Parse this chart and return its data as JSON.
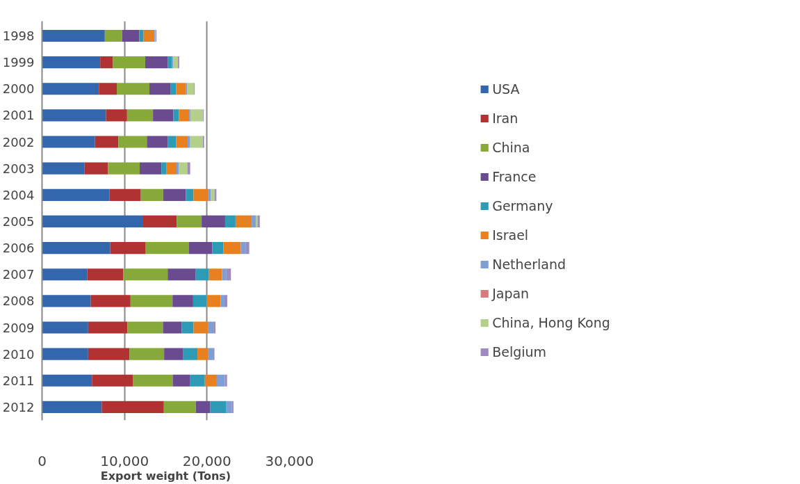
{
  "chart_data": {
    "type": "bar",
    "orientation": "horizontal",
    "stacked": true,
    "xlabel": "Export weight (Tons)",
    "categories": [
      "1998",
      "1999",
      "2000",
      "2001",
      "2002",
      "2003",
      "2004",
      "2005",
      "2006",
      "2007",
      "2008",
      "2009",
      "2010",
      "2011",
      "2012"
    ],
    "xlim": [
      0,
      30000
    ],
    "xticks": [
      {
        "value": 0,
        "label": "0"
      },
      {
        "value": 10000,
        "label": "10,000"
      },
      {
        "value": 20000,
        "label": "20,000"
      },
      {
        "value": 30000,
        "label": "30,000"
      }
    ],
    "grid": "x",
    "legend": "right",
    "series": [
      {
        "name": "USA",
        "color": "#3366ad",
        "values": [
          7610,
          7050,
          6890,
          7750,
          6420,
          5160,
          8180,
          12260,
          8270,
          5490,
          5910,
          5590,
          5590,
          6050,
          7240
        ]
      },
      {
        "name": "Iran",
        "color": "#b03232",
        "values": [
          0,
          1540,
          2170,
          2560,
          2830,
          2840,
          3800,
          4070,
          4300,
          4370,
          4820,
          4750,
          5000,
          5000,
          7530
        ]
      },
      {
        "name": "China",
        "color": "#87a93a",
        "values": [
          2110,
          3920,
          3960,
          3140,
          3460,
          3840,
          2710,
          3020,
          5210,
          5370,
          5090,
          4320,
          4210,
          4790,
          3870
        ]
      },
      {
        "name": "France",
        "color": "#6b4b8f",
        "values": [
          2080,
          2750,
          2590,
          2470,
          2550,
          2630,
          2740,
          2850,
          2850,
          3410,
          2500,
          2260,
          2270,
          2130,
          1760
        ]
      },
      {
        "name": "Germany",
        "color": "#2e9bb6",
        "values": [
          510,
          510,
          630,
          670,
          1010,
          630,
          930,
          1260,
          1350,
          1600,
          1610,
          1450,
          1770,
          1770,
          1950
        ]
      },
      {
        "name": "Israel",
        "color": "#e8801f",
        "values": [
          1310,
          0,
          1170,
          1250,
          1380,
          1210,
          1810,
          1960,
          2130,
          1580,
          1730,
          1800,
          1330,
          1450,
          0
        ]
      },
      {
        "name": "Netherland",
        "color": "#7f9fd4",
        "values": [
          90,
          140,
          200,
          190,
          260,
          280,
          280,
          490,
          610,
          540,
          460,
          680,
          600,
          960,
          670
        ]
      },
      {
        "name": "Japan",
        "color": "#d67c7c",
        "values": [
          0,
          0,
          0,
          0,
          0,
          0,
          0,
          0,
          null,
          0,
          null,
          null,
          null,
          40,
          null
        ]
      },
      {
        "name": "China, Hong Kong",
        "color": "#b3cf8a",
        "values": [
          60,
          560,
          820,
          1500,
          1580,
          1020,
          460,
          210,
          0,
          0,
          0,
          0,
          0,
          0,
          0
        ]
      },
      {
        "name": "Belgium",
        "color": "#9d8bc0",
        "values": [
          100,
          160,
          80,
          80,
          160,
          350,
          230,
          280,
          400,
          540,
          340,
          180,
          130,
          240,
          190
        ]
      }
    ]
  }
}
